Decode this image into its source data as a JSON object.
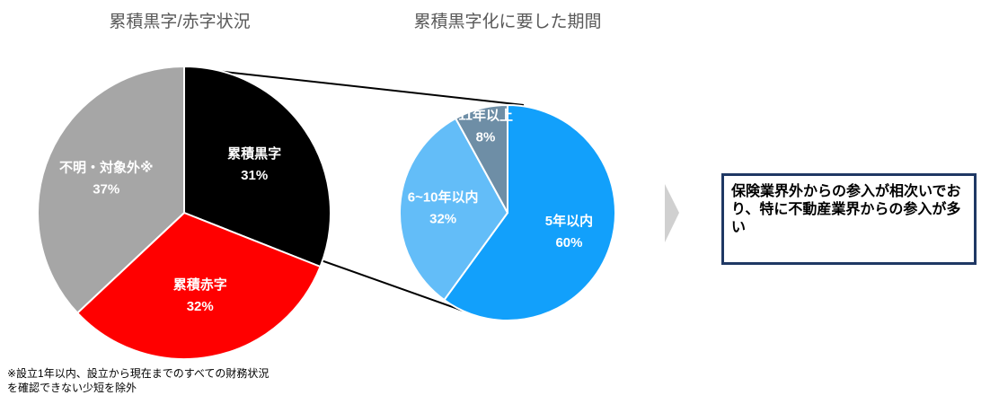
{
  "chart_data": [
    {
      "type": "pie",
      "title": "累積黒字/赤字状況",
      "categories": [
        "累積黒字",
        "累積赤字",
        "不明・対象外※"
      ],
      "values": [
        31,
        32,
        37
      ],
      "value_labels": [
        "31%",
        "32%",
        "37%"
      ],
      "colors": [
        "#000000",
        "#ff0000",
        "#a6a6a6"
      ]
    },
    {
      "type": "pie",
      "title": "累積黒字化に要した期間",
      "categories": [
        "5年以内",
        "6~10年以内",
        "11年以上"
      ],
      "values": [
        60,
        32,
        8
      ],
      "value_labels": [
        "60%",
        "32%",
        "8%"
      ],
      "colors": [
        "#12a0fb",
        "#63bdf8",
        "#6e8ea6"
      ]
    }
  ],
  "note": "※設立1年以内、設立から現在までのすべての財務状況を確認できない少短を除外",
  "callout": "保険業界外からの参入が相次いでおり、特に不動産業界からの参入が多い"
}
